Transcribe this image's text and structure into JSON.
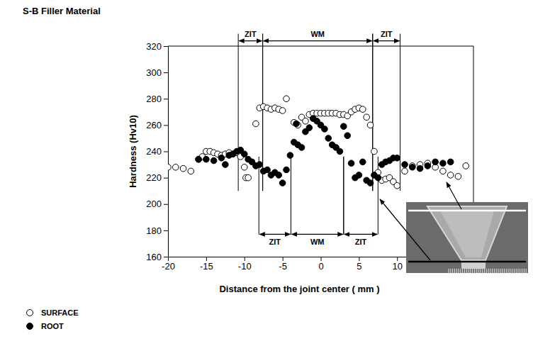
{
  "chart_data": {
    "type": "scatter",
    "title": "S-B Filler Material",
    "x_label": "Distance from the joint center ( mm )",
    "y_label": "Hardness (Hv10)",
    "xlim": [
      -20,
      20
    ],
    "xticks": [
      -20,
      -15,
      -10,
      -5,
      0,
      5,
      10
    ],
    "ylim": [
      160,
      320
    ],
    "yticks": [
      160,
      180,
      200,
      220,
      240,
      260,
      280,
      300,
      320
    ],
    "grid": false,
    "legend": "bottom-left",
    "series": [
      {
        "name": "SURFACE",
        "color": "#000000",
        "marker": "open-circle",
        "x": [
          -20,
          -19,
          -18,
          -17,
          -16,
          -15.5,
          -15,
          -14.5,
          -14,
          -13.5,
          -13,
          -12.5,
          -12,
          -11.5,
          -11,
          -10.5,
          -10,
          -9.8,
          -9.5,
          -8.5,
          -8,
          -7.5,
          -7,
          -6.5,
          -6,
          -5.5,
          -5,
          -4.5,
          -3.5,
          -3,
          -2.5,
          -2,
          -1.5,
          -1,
          -0.5,
          0,
          0.5,
          1,
          1.5,
          2,
          2.5,
          3,
          3.5,
          4,
          4.5,
          5,
          5.5,
          6,
          6.5,
          7,
          7.5,
          8,
          8.5,
          9,
          9.5,
          10,
          11,
          12,
          13,
          14,
          15,
          16,
          17,
          18,
          19
        ],
        "values": [
          228,
          228,
          227,
          225,
          234,
          236,
          240,
          240,
          239,
          238,
          237,
          238,
          239,
          238,
          239,
          236,
          228,
          220,
          220,
          261,
          273,
          274,
          273,
          272,
          273,
          272,
          271,
          280,
          262,
          260,
          266,
          263,
          268,
          269,
          269,
          269,
          269,
          269,
          269,
          269,
          268,
          268,
          267,
          270,
          272,
          273,
          272,
          266,
          260,
          240,
          224,
          218,
          219,
          220,
          217,
          214,
          225,
          229,
          230,
          231,
          228,
          225,
          222,
          221,
          229
        ]
      },
      {
        "name": "ROOT",
        "color": "#000000",
        "marker": "circle",
        "x": [
          -16,
          -15,
          -14,
          -13,
          -12.5,
          -12,
          -11.5,
          -11,
          -10.5,
          -10,
          -9.5,
          -9,
          -8.5,
          -8,
          -7.5,
          -7,
          -6.5,
          -6,
          -5.5,
          -5,
          -4.5,
          -4,
          -3.5,
          -3.2,
          -3,
          -2.5,
          -2,
          -1.5,
          -1,
          -0.5,
          0,
          0.5,
          1,
          1.5,
          2,
          2.5,
          3,
          3.5,
          4,
          4.5,
          5,
          5.5,
          6,
          6.5,
          7,
          7.5,
          8,
          8.5,
          9,
          9.5,
          10,
          11,
          12,
          13,
          14,
          15,
          16,
          17
        ],
        "values": [
          234,
          234,
          233,
          235,
          230,
          237,
          238,
          240,
          241,
          238,
          234,
          232,
          229,
          230,
          225,
          226,
          222,
          224,
          222,
          216,
          226,
          237,
          247,
          261,
          245,
          243,
          255,
          258,
          265,
          263,
          260,
          257,
          250,
          245,
          243,
          240,
          259,
          252,
          231,
          220,
          222,
          232,
          218,
          216,
          222,
          220,
          230,
          232,
          233,
          235,
          235,
          230,
          228,
          227,
          229,
          232,
          231,
          232
        ]
      }
    ],
    "annotations": [
      {
        "text": "ZIT",
        "x0": -10.8,
        "x1": -7.6,
        "y": 324,
        "y_end": 210
      },
      {
        "text": "WM",
        "x0": -7.6,
        "x1": 6.8,
        "y": 324,
        "y_end": 210
      },
      {
        "text": "ZIT",
        "x0": 6.8,
        "x1": 10.4,
        "y": 324,
        "y_end": 210
      },
      {
        "text": "ZIT",
        "x0": -8.1,
        "x1": -3.9,
        "y": 177,
        "y_end": 236
      },
      {
        "text": "WM",
        "x0": -3.9,
        "x1": 3.0,
        "y": 177,
        "y_end": 236
      },
      {
        "text": "ZIT",
        "x0": 3.0,
        "x1": 7.5,
        "y": 177,
        "y_end": 236
      }
    ]
  }
}
